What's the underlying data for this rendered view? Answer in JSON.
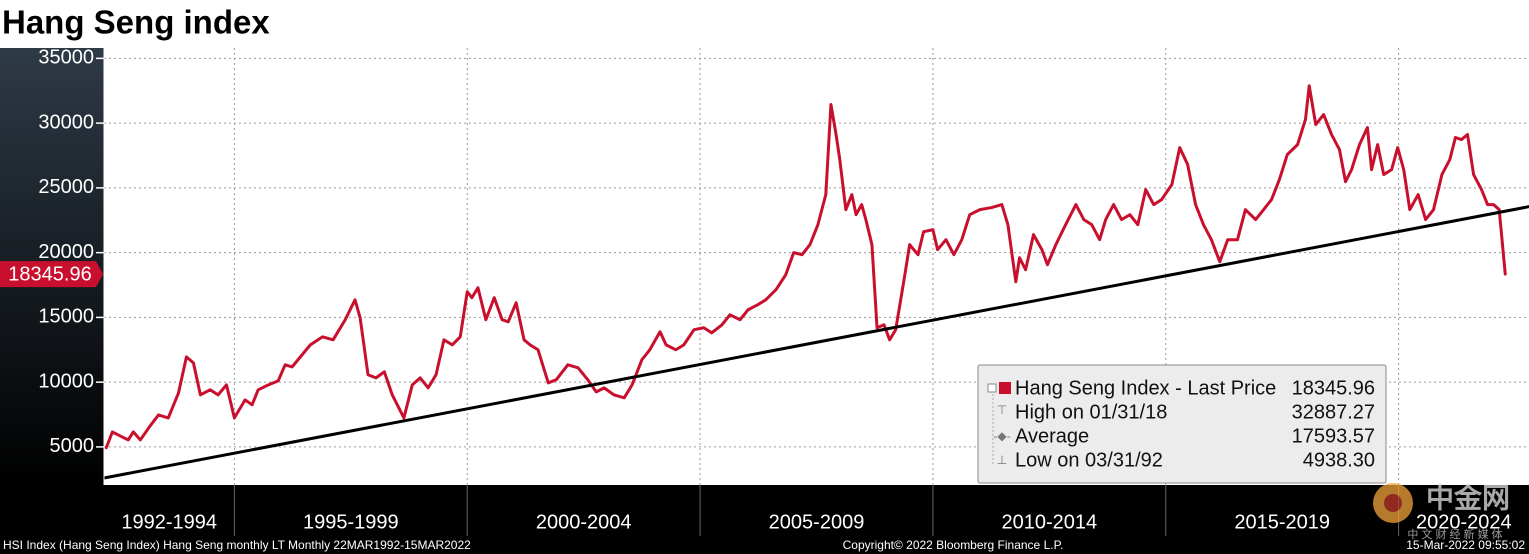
{
  "chart_data": {
    "type": "line",
    "title": "Hang Seng index",
    "xlim": [
      1992.2,
      2022.8
    ],
    "ylim": [
      2060,
      35800
    ],
    "yticks": [
      5000,
      10000,
      15000,
      20000,
      25000,
      30000,
      35000
    ],
    "grid": true,
    "periods": [
      {
        "label": "1992-1994",
        "start": 1992,
        "end": 1995
      },
      {
        "label": "1995-1999",
        "start": 1995,
        "end": 2000
      },
      {
        "label": "2000-2004",
        "start": 2000,
        "end": 2005
      },
      {
        "label": "2005-2009",
        "start": 2005,
        "end": 2010
      },
      {
        "label": "2010-2014",
        "start": 2010,
        "end": 2015
      },
      {
        "label": "2015-2019",
        "start": 2015,
        "end": 2020
      },
      {
        "label": "2020-2024",
        "start": 2020,
        "end": 2025
      }
    ],
    "series": [
      {
        "name": "Hang Seng Index - Last Price",
        "color": "#c8102e",
        "x": [
          1992.25,
          1992.38,
          1992.59,
          1992.72,
          1992.83,
          1992.98,
          1993.19,
          1993.37,
          1993.58,
          1993.8,
          1993.97,
          1994.12,
          1994.27,
          1994.48,
          1994.65,
          1994.83,
          1995.0,
          1995.23,
          1995.38,
          1995.51,
          1995.73,
          1995.94,
          1996.09,
          1996.24,
          1996.63,
          1996.89,
          1997.12,
          1997.38,
          1997.59,
          1997.7,
          1997.87,
          1998.04,
          1998.22,
          1998.39,
          1998.64,
          1998.82,
          1998.99,
          1999.16,
          1999.33,
          1999.5,
          1999.68,
          1999.85,
          2000.0,
          2000.1,
          2000.23,
          2000.4,
          2000.58,
          2000.75,
          2000.88,
          2001.05,
          2001.22,
          2001.35,
          2001.52,
          2001.74,
          2001.91,
          2002.16,
          2002.38,
          2002.59,
          2002.77,
          2002.94,
          2003.15,
          2003.37,
          2003.54,
          2003.75,
          2003.92,
          2004.14,
          2004.27,
          2004.48,
          2004.65,
          2004.87,
          2005.08,
          2005.25,
          2005.47,
          2005.64,
          2005.86,
          2006.03,
          2006.24,
          2006.41,
          2006.63,
          2006.84,
          2007.01,
          2007.19,
          2007.36,
          2007.53,
          2007.7,
          2007.81,
          2007.92,
          2008.0,
          2008.13,
          2008.26,
          2008.35,
          2008.47,
          2008.56,
          2008.69,
          2008.8,
          2008.95,
          2009.07,
          2009.2,
          2009.38,
          2009.5,
          2009.68,
          2009.8,
          2010.0,
          2010.1,
          2010.28,
          2010.45,
          2010.62,
          2010.79,
          2011.01,
          2011.26,
          2011.48,
          2011.61,
          2011.78,
          2011.86,
          2011.99,
          2012.16,
          2012.34,
          2012.46,
          2012.64,
          2012.85,
          2013.07,
          2013.24,
          2013.41,
          2013.58,
          2013.71,
          2013.88,
          2014.05,
          2014.23,
          2014.4,
          2014.57,
          2014.74,
          2014.91,
          2015.13,
          2015.3,
          2015.47,
          2015.64,
          2015.81,
          2015.98,
          2016.16,
          2016.33,
          2016.54,
          2016.71,
          2016.93,
          2017.1,
          2017.27,
          2017.44,
          2017.61,
          2017.83,
          2018.0,
          2018.08,
          2018.22,
          2018.39,
          2018.56,
          2018.73,
          2018.86,
          2018.99,
          2019.16,
          2019.33,
          2019.42,
          2019.55,
          2019.68,
          2019.85,
          2019.98,
          2020.11,
          2020.24,
          2020.42,
          2020.58,
          2020.75,
          2020.93,
          2021.1,
          2021.22,
          2021.35,
          2021.48,
          2021.61,
          2021.78,
          2021.91,
          2022.04,
          2022.16,
          2022.29
        ],
        "values": [
          4938.3,
          6160,
          5770,
          5540,
          6160,
          5540,
          6620,
          7470,
          7240,
          9170,
          11950,
          11490,
          9020,
          9410,
          9020,
          9790,
          7240,
          8630,
          8250,
          9410,
          9790,
          10100,
          11340,
          11180,
          12880,
          13500,
          13270,
          14820,
          16360,
          14970,
          10570,
          10330,
          10800,
          9020,
          7240,
          9790,
          10330,
          9560,
          10570,
          13270,
          12880,
          13500,
          16980,
          16520,
          17290,
          14820,
          16520,
          14820,
          14660,
          16130,
          13270,
          12880,
          12500,
          9950,
          10180,
          11340,
          11110,
          10180,
          9250,
          9560,
          9020,
          8790,
          9790,
          11730,
          12500,
          13890,
          12880,
          12500,
          12880,
          14050,
          14200,
          13810,
          14430,
          15200,
          14820,
          15590,
          15980,
          16360,
          17140,
          18300,
          20000,
          19840,
          20620,
          22160,
          24480,
          31440,
          29120,
          27190,
          23320,
          24480,
          22930,
          23710,
          22550,
          20620,
          14200,
          14430,
          13270,
          14050,
          17910,
          20620,
          19840,
          21620,
          21770,
          20230,
          21000,
          19840,
          21000,
          22930,
          23320,
          23480,
          23710,
          22160,
          17750,
          19610,
          18680,
          21390,
          20230,
          19070,
          20620,
          22160,
          23710,
          22550,
          22160,
          21000,
          22550,
          23710,
          22550,
          22930,
          22160,
          24870,
          23710,
          24090,
          25250,
          28110,
          26800,
          23710,
          22160,
          21000,
          19300,
          21000,
          21000,
          23320,
          22550,
          23320,
          24090,
          25640,
          27570,
          28340,
          30280,
          32887.27,
          29890,
          30660,
          29120,
          27960,
          25480,
          26410,
          28340,
          29660,
          26410,
          28340,
          26030,
          26410,
          28110,
          26410,
          23320,
          24480,
          22550,
          23320,
          26030,
          27190,
          28890,
          28730,
          29120,
          26030,
          24870,
          23710,
          23710,
          23320,
          18345.96
        ]
      }
    ],
    "trendline": {
      "x": [
        1992.2,
        2022.8
      ],
      "values": [
        2600,
        23550
      ],
      "color": "#000000"
    },
    "last_price": 18345.96,
    "stats": [
      {
        "label": "High on 01/31/18",
        "value": 32887.27
      },
      {
        "label": "Average",
        "value": 17593.57
      },
      {
        "label": "Low on 03/31/92",
        "value": 4938.3,
        "value_label": "4938.30"
      }
    ],
    "footer": {
      "left": "HSI Index (Hang Seng Index) Hang Seng monthly LT  Monthly 22MAR1992-15MAR2022",
      "center": "Copyright© 2022 Bloomberg Finance L.P.",
      "right": "15-Mar-2022 09:55:02"
    },
    "watermark": {
      "logo": "中金网",
      "tagline": "中 文 财 经 新 媒 体"
    }
  }
}
